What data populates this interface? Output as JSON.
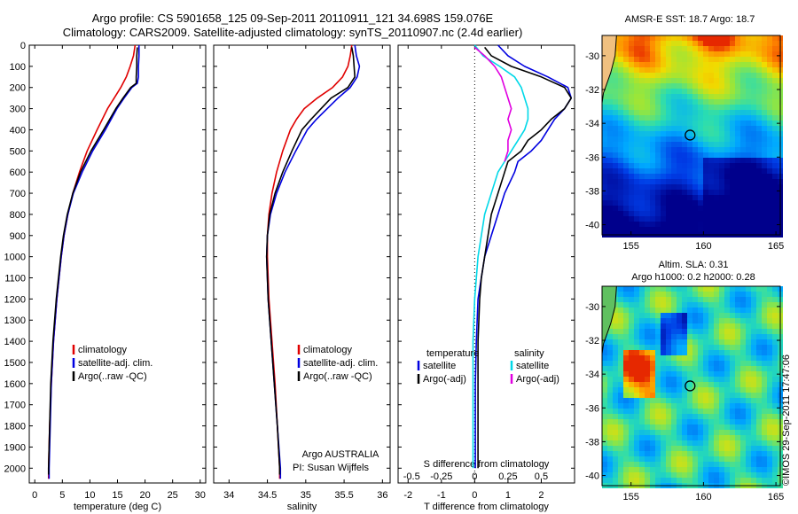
{
  "header": {
    "line1": "Argo profile: CS 5901658_125 09-Sep-2011 20110911_121 34.698S 159.076E",
    "line2": "Climatology: CARS2009. Satellite-adjusted climatology: synTS_20110907.nc (2.4d earlier)"
  },
  "stamp": "©IMOS 29-Sep-2011 17:47:06",
  "colors": {
    "climatology": "#e00000",
    "satellite": "#0000e0",
    "argo": "#000000",
    "satellite_s": "#00d8e8",
    "argo_s": "#e000e0"
  },
  "chart_data": [
    {
      "type": "line",
      "id": "temperature",
      "xlabel": "temperature (deg C)",
      "ylabel": "",
      "xlim": [
        -1,
        31
      ],
      "ylim": [
        2070,
        0
      ],
      "xticks": [
        0,
        5,
        10,
        15,
        20,
        25,
        30
      ],
      "yticks": [
        0,
        100,
        200,
        300,
        400,
        500,
        600,
        700,
        800,
        900,
        1000,
        1100,
        1200,
        1300,
        1400,
        1500,
        1600,
        1700,
        1800,
        1900,
        2000
      ],
      "legend": [
        "climatology",
        "satellite-adj. clim.",
        "Argo(..raw -QC)"
      ],
      "series": [
        {
          "name": "climatology",
          "color": "#e00000",
          "depth": [
            0,
            50,
            100,
            150,
            200,
            250,
            300,
            400,
            500,
            600,
            700,
            800,
            900,
            1000,
            1200,
            1400,
            1600,
            1800,
            2000,
            2050
          ],
          "values": [
            18.2,
            17.9,
            17.3,
            16.6,
            15.6,
            14.4,
            13.2,
            11.3,
            9.5,
            8.1,
            6.9,
            6.0,
            5.3,
            4.8,
            4.0,
            3.4,
            3.0,
            2.7,
            2.5,
            2.5
          ]
        },
        {
          "name": "satellite-adj. clim.",
          "color": "#0000e0",
          "depth": [
            0,
            50,
            100,
            150,
            180,
            200,
            250,
            300,
            400,
            500,
            600,
            700,
            800,
            900,
            1000,
            1200,
            1400,
            1600,
            1800,
            2000,
            2050
          ],
          "values": [
            18.9,
            18.9,
            18.8,
            18.8,
            18.6,
            17.6,
            16.2,
            14.9,
            12.8,
            10.5,
            8.6,
            7.0,
            6.0,
            5.3,
            4.8,
            4.0,
            3.4,
            3.0,
            2.8,
            2.6,
            2.6
          ]
        },
        {
          "name": "Argo(..raw -QC)",
          "color": "#000000",
          "depth": [
            10,
            50,
            100,
            150,
            180,
            200,
            250,
            300,
            400,
            500,
            600,
            700,
            800,
            900,
            1000,
            1200,
            1400,
            1600,
            1800,
            2000,
            2030
          ],
          "values": [
            18.6,
            18.5,
            18.5,
            18.4,
            18.4,
            17.4,
            16.0,
            14.7,
            12.5,
            10.2,
            8.3,
            6.9,
            5.9,
            5.2,
            4.7,
            3.9,
            3.3,
            2.9,
            2.7,
            2.5,
            2.5
          ]
        }
      ],
      "annotation": []
    },
    {
      "type": "line",
      "id": "salinity",
      "xlabel": "salinity",
      "ylabel": "",
      "xlim": [
        33.8,
        36.1
      ],
      "ylim": [
        2070,
        0
      ],
      "xticks": [
        34,
        34.5,
        35,
        35.5,
        36
      ],
      "legend": [
        "climatology",
        "satellite-adj. clim.",
        "Argo(..raw -QC)"
      ],
      "series": [
        {
          "name": "climatology",
          "color": "#e00000",
          "depth": [
            0,
            50,
            100,
            150,
            200,
            250,
            300,
            350,
            400,
            500,
            600,
            700,
            800,
            900,
            1000,
            1200,
            1400,
            1600,
            1800,
            2000,
            2050
          ],
          "values": [
            35.6,
            35.58,
            35.55,
            35.48,
            35.35,
            35.15,
            34.98,
            34.88,
            34.8,
            34.7,
            34.62,
            34.56,
            34.52,
            34.5,
            34.5,
            34.52,
            34.56,
            34.6,
            34.63,
            34.66,
            34.66
          ]
        },
        {
          "name": "satellite-adj. clim.",
          "color": "#0000e0",
          "depth": [
            0,
            50,
            100,
            150,
            200,
            250,
            300,
            350,
            400,
            500,
            600,
            700,
            800,
            900,
            1000,
            1200,
            1400,
            1600,
            1800,
            2000,
            2050
          ],
          "values": [
            35.64,
            35.66,
            35.7,
            35.67,
            35.58,
            35.42,
            35.28,
            35.14,
            35.02,
            34.87,
            34.73,
            34.62,
            34.54,
            34.5,
            34.49,
            34.51,
            34.55,
            34.59,
            34.63,
            34.67,
            34.67
          ]
        },
        {
          "name": "Argo(..raw -QC)",
          "color": "#000000",
          "depth": [
            10,
            50,
            100,
            150,
            200,
            250,
            300,
            350,
            400,
            500,
            600,
            700,
            800,
            900,
            1000,
            1200,
            1400,
            1600,
            1800,
            2000,
            2030
          ],
          "values": [
            35.6,
            35.62,
            35.63,
            35.64,
            35.55,
            35.33,
            35.2,
            35.07,
            34.95,
            34.82,
            34.7,
            34.6,
            34.53,
            34.5,
            34.49,
            34.51,
            34.55,
            34.59,
            34.63,
            34.66,
            34.66
          ]
        }
      ],
      "annotation": [
        "Argo AUSTRALIA",
        "PI: Susan Wijffels"
      ]
    },
    {
      "type": "line",
      "id": "difference",
      "xlabel": "T difference from climatology",
      "xlabel_top": "S difference from climatology",
      "xlim": [
        -2.3,
        3.0
      ],
      "ylim": [
        2070,
        0
      ],
      "xticks": [
        -2,
        -1,
        0,
        1,
        2
      ],
      "xticklabels_top": [
        "-0.5",
        "-0.25",
        "0",
        "0.25",
        "0.5"
      ],
      "xticks_top": [
        -2,
        -1,
        0,
        1,
        2
      ],
      "legend_title_t": "temperature",
      "legend_title_s": "salinity",
      "legend_t": [
        "satellite",
        "Argo(-adj)"
      ],
      "legend_s": [
        "satellite",
        "Argo(-adj)"
      ],
      "series": [
        {
          "name": "satellite",
          "color": "#0000e0",
          "depth": [
            0,
            50,
            100,
            150,
            200,
            250,
            300,
            350,
            400,
            450,
            500,
            550,
            600,
            700,
            800,
            900,
            1000,
            1100,
            1200,
            1400,
            1600,
            1800,
            2000
          ],
          "values": [
            0.7,
            1.0,
            1.5,
            2.2,
            2.8,
            2.9,
            2.7,
            2.4,
            2.2,
            2.0,
            1.7,
            1.3,
            1.2,
            0.9,
            0.7,
            0.5,
            0.3,
            0.2,
            0.1,
            0.05,
            0.02,
            0.02,
            0.02
          ]
        },
        {
          "name": "Argo(-adj)",
          "color": "#000000",
          "depth": [
            10,
            50,
            100,
            150,
            200,
            250,
            300,
            350,
            400,
            450,
            500,
            550,
            600,
            700,
            800,
            900,
            1000,
            1100,
            1200,
            1400,
            1600,
            1800,
            2000
          ],
          "values": [
            0.3,
            0.5,
            1.1,
            2.0,
            2.7,
            2.9,
            2.7,
            2.3,
            2.0,
            1.6,
            1.4,
            1.0,
            0.9,
            0.7,
            0.5,
            0.4,
            0.3,
            0.2,
            0.15,
            0.1,
            0.1,
            0.1,
            0.1
          ]
        },
        {
          "name": "satellite",
          "color": "#00d8e8",
          "depth": [
            0,
            50,
            100,
            150,
            200,
            250,
            300,
            350,
            400,
            450,
            500,
            550,
            600,
            700,
            800,
            900,
            1000,
            1100,
            1200,
            1400,
            1600,
            1800,
            2000
          ],
          "values": [
            0,
            0.25,
            0.75,
            1.2,
            1.4,
            1.5,
            1.6,
            1.6,
            1.5,
            1.3,
            1.1,
            0.9,
            0.7,
            0.5,
            0.3,
            0.2,
            0.1,
            0.05,
            0,
            -0.05,
            -0.05,
            -0.05,
            -0.05
          ]
        },
        {
          "name": "Argo(-adj)",
          "color": "#e000e0",
          "depth": [
            10,
            50,
            100,
            150,
            200,
            250,
            300,
            350,
            400,
            450,
            500,
            550
          ],
          "values": [
            0,
            0.3,
            0.6,
            0.8,
            0.9,
            1.0,
            1.1,
            1.0,
            1.1,
            1.0,
            1.0,
            0.9
          ]
        }
      ]
    },
    {
      "type": "heatmap",
      "id": "sst-map",
      "title": "AMSR-E SST: 18.7  Argo: 18.7",
      "xlim": [
        153,
        165.3
      ],
      "ylim": [
        -40.6,
        -28.8
      ],
      "xticks": [
        155,
        160,
        165
      ],
      "yticks": [
        -30,
        -32,
        -34,
        -36,
        -38,
        -40
      ],
      "marker": [
        159.076,
        -34.698
      ]
    },
    {
      "type": "heatmap",
      "id": "sla-map",
      "title": "Altim. SLA: 0.31",
      "subtitle": "Argo h1000: 0.2  h2000: 0.28",
      "xlim": [
        153,
        165.3
      ],
      "ylim": [
        -40.6,
        -28.8
      ],
      "xticks": [
        155,
        160,
        165
      ],
      "yticks": [
        -30,
        -32,
        -34,
        -36,
        -38,
        -40
      ],
      "marker": [
        159.076,
        -34.698
      ]
    }
  ]
}
